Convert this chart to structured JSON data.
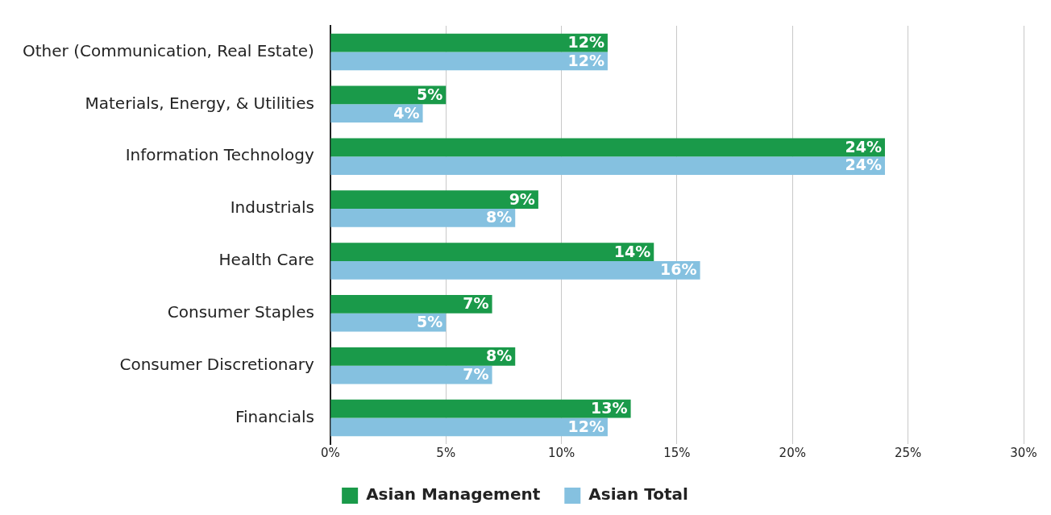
{
  "chart_data": {
    "type": "bar",
    "orientation": "horizontal",
    "categories": [
      "Other (Communication, Real Estate)",
      "Materials, Energy, & Utilities",
      "Information Technology",
      "Industrials",
      "Health Care",
      "Consumer Staples",
      "Consumer Discretionary",
      "Financials"
    ],
    "series": [
      {
        "name": "Asian Management",
        "color": "#1a9a4a",
        "values": [
          12,
          5,
          24,
          9,
          14,
          7,
          8,
          13
        ],
        "value_labels": [
          "12%",
          "5%",
          "24%",
          "9%",
          "14%",
          "7%",
          "8%",
          "13%"
        ]
      },
      {
        "name": "Asian Total",
        "color": "#85c1e0",
        "values": [
          12,
          4,
          24,
          8,
          16,
          5,
          7,
          12
        ],
        "value_labels": [
          "12%",
          "4%",
          "24%",
          "8%",
          "16%",
          "5%",
          "7%",
          "12%"
        ]
      }
    ],
    "xlim": [
      0,
      30
    ],
    "xticks": [
      {
        "value": 0,
        "label": "0%"
      },
      {
        "value": 5,
        "label": "5%"
      },
      {
        "value": 10,
        "label": "10%"
      },
      {
        "value": 15,
        "label": "15%"
      },
      {
        "value": 20,
        "label": "20%"
      },
      {
        "value": 25,
        "label": "25%"
      },
      {
        "value": 30,
        "label": "30%"
      }
    ],
    "grid": "x",
    "legend": "bottom"
  }
}
